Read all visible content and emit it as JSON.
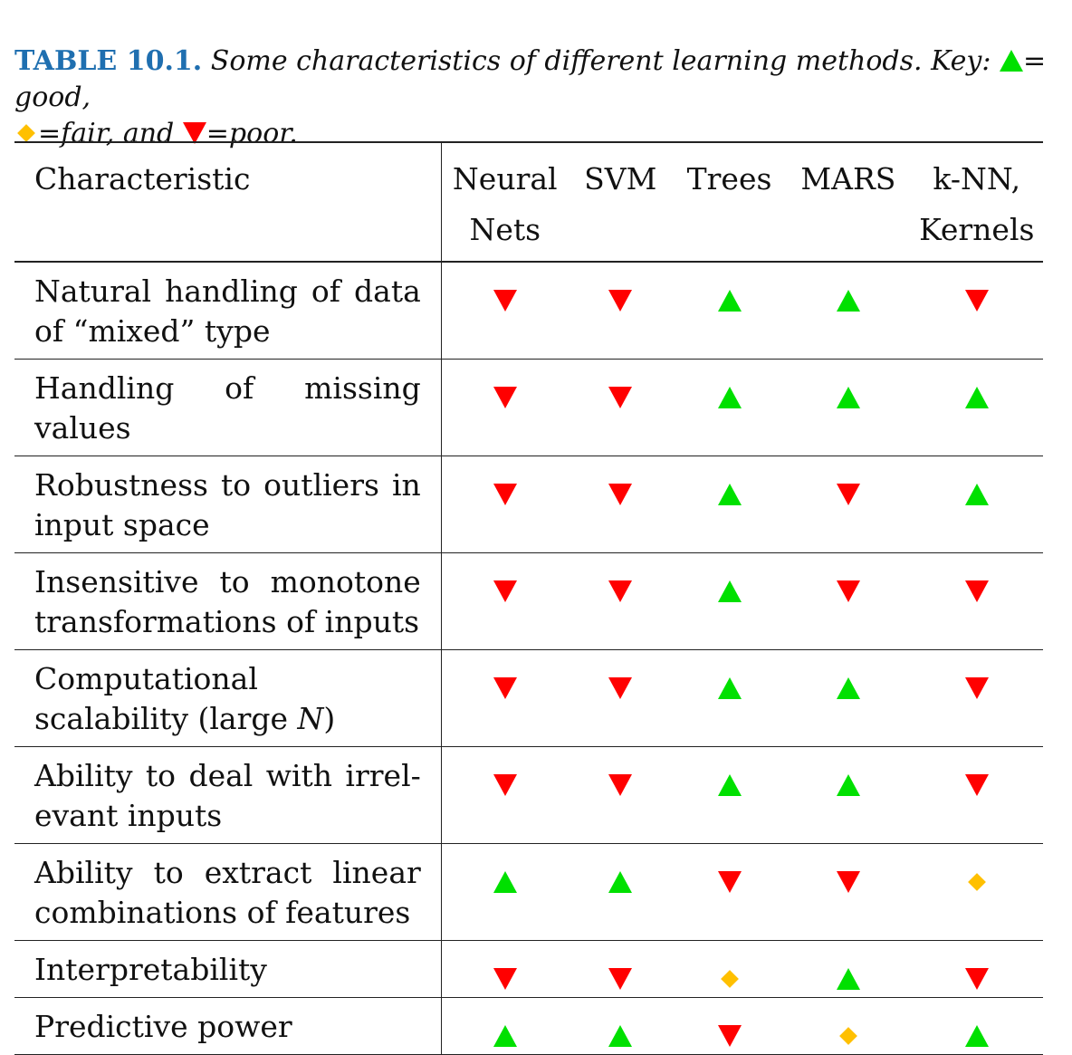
{
  "caption": {
    "label": "TABLE 10.1.",
    "text_1": "Some characteristics of different learning methods. Key:",
    "good_icon": "green-up-triangle",
    "good_text": "= good,",
    "fair_icon": "orange-diamond",
    "fair_text": "=fair, and",
    "poor_icon": "red-down-triangle",
    "poor_text": "=poor."
  },
  "table": {
    "header": {
      "characteristic": "Characteristic",
      "methods": [
        {
          "line1": "Neural",
          "line2": "Nets"
        },
        {
          "line1": "SVM",
          "line2": ""
        },
        {
          "line1": "Trees",
          "line2": ""
        },
        {
          "line1": "MARS",
          "line2": ""
        },
        {
          "line1": "k-NN,",
          "line2": "Kernels"
        }
      ]
    },
    "rows": [
      {
        "label": "Natural handling of data of “mixed” type",
        "ratings": [
          "poor",
          "poor",
          "good",
          "good",
          "poor"
        ]
      },
      {
        "label": "Handling of missing values",
        "ratings": [
          "poor",
          "poor",
          "good",
          "good",
          "good"
        ]
      },
      {
        "label": "Robustness to outliers in input space",
        "ratings": [
          "poor",
          "poor",
          "good",
          "poor",
          "good"
        ]
      },
      {
        "label": "Insensitive to monotone transformations of inputs",
        "ratings": [
          "poor",
          "poor",
          "good",
          "poor",
          "poor"
        ]
      },
      {
        "label_prefix": "Computational scalability (large ",
        "label_var": "N",
        "label_suffix": ")",
        "ratings": [
          "poor",
          "poor",
          "good",
          "good",
          "poor"
        ]
      },
      {
        "label": "Ability to deal with irrel-evant inputs",
        "ratings": [
          "poor",
          "poor",
          "good",
          "good",
          "poor"
        ]
      },
      {
        "label": "Ability to extract linear combinations of features",
        "ratings": [
          "good",
          "good",
          "poor",
          "poor",
          "fair"
        ]
      },
      {
        "label": "Interpretability",
        "ratings": [
          "poor",
          "poor",
          "fair",
          "good",
          "poor"
        ]
      },
      {
        "label": "Predictive power",
        "ratings": [
          "good",
          "good",
          "poor",
          "fair",
          "good"
        ]
      }
    ]
  },
  "colors": {
    "good": "#00e000",
    "fair": "#ffc000",
    "poor": "#ff0000",
    "caption_label": "#1f6fb0"
  }
}
